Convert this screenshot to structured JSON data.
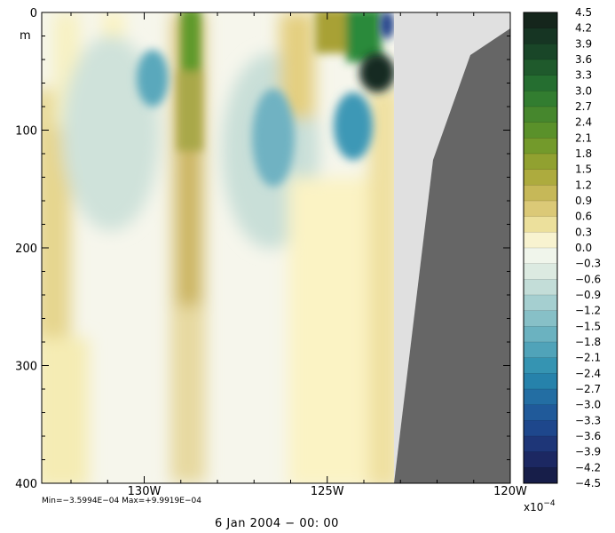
{
  "chart_data": {
    "type": "heatmap",
    "title": "",
    "xlabel": "",
    "ylabel": "m",
    "x_ticks": [
      {
        "value": -130,
        "label": "130W"
      },
      {
        "value": -125,
        "label": "125W"
      },
      {
        "value": -120,
        "label": "120W"
      }
    ],
    "xlim": [
      -132.8,
      -120
    ],
    "y_ticks": [
      {
        "value": 0,
        "label": "0"
      },
      {
        "value": 100,
        "label": "100"
      },
      {
        "value": 200,
        "label": "200"
      },
      {
        "value": 300,
        "label": "300"
      },
      {
        "value": 400,
        "label": "400"
      }
    ],
    "ylim": [
      0,
      400
    ],
    "y_inverted": true,
    "field_units": "x10^-4",
    "colorbar": {
      "levels": [
        4.5,
        4.2,
        3.9,
        3.6,
        3.3,
        3.0,
        2.7,
        2.4,
        2.1,
        1.8,
        1.5,
        1.2,
        0.9,
        0.6,
        0.3,
        0.0,
        -0.3,
        -0.6,
        -0.9,
        -1.2,
        -1.5,
        -1.8,
        -2.1,
        -2.4,
        -2.7,
        -3.0,
        -3.3,
        -3.6,
        -3.9,
        -4.2,
        -4.5
      ],
      "labels": [
        "4.5",
        "4.2",
        "3.9",
        "3.6",
        "3.3",
        "3.0",
        "2.7",
        "2.4",
        "2.1",
        "1.8",
        "1.5",
        "1.2",
        "0.9",
        "0.6",
        "0.3",
        "0.0",
        "−0.3",
        "−0.6",
        "−0.9",
        "−1.2",
        "−1.5",
        "−1.8",
        "−2.1",
        "−2.4",
        "−2.7",
        "−3.0",
        "−3.3",
        "−3.6",
        "−3.9",
        "−4.2",
        "−4.5"
      ],
      "scale_label_base": "x10",
      "scale_label_exp": "−4"
    },
    "colors": {
      "high": "#1a2a1e",
      "green": "#2f8a2a",
      "olive": "#8fa51e",
      "tan": "#c8b054",
      "cream": "#fbf6c8",
      "white": "#f5f6ee",
      "pale_teal": "#b7d6cf",
      "teal": "#3f9ab5",
      "blue": "#1f4aa0",
      "low": "#1a1f44",
      "mask_light": "#e0e0e0",
      "mask_dark": "#666666"
    },
    "features": [
      {
        "lon": -129.0,
        "depth": 55,
        "value": -2.2
      },
      {
        "lon": -126.0,
        "depth": 115,
        "value": -2.0
      },
      {
        "lon": -123.9,
        "depth": 95,
        "value": -2.7
      },
      {
        "lon": -131.2,
        "depth": 155,
        "value": 1.1
      },
      {
        "lon": -128.0,
        "depth": 20,
        "value": 2.8
      },
      {
        "lon": -128.0,
        "depth": 160,
        "value": 1.2
      },
      {
        "lon": -124.6,
        "depth": 25,
        "value": 1.8
      },
      {
        "lon": -123.3,
        "depth": 60,
        "value": 4.3
      },
      {
        "lon": -123.5,
        "depth": 15,
        "value": -4.0
      }
    ]
  },
  "annotations": {
    "min_max": "Min=−3.5994E−04   Max=+9.9919E−04",
    "date": "6 Jan 2004 − 00: 00"
  }
}
